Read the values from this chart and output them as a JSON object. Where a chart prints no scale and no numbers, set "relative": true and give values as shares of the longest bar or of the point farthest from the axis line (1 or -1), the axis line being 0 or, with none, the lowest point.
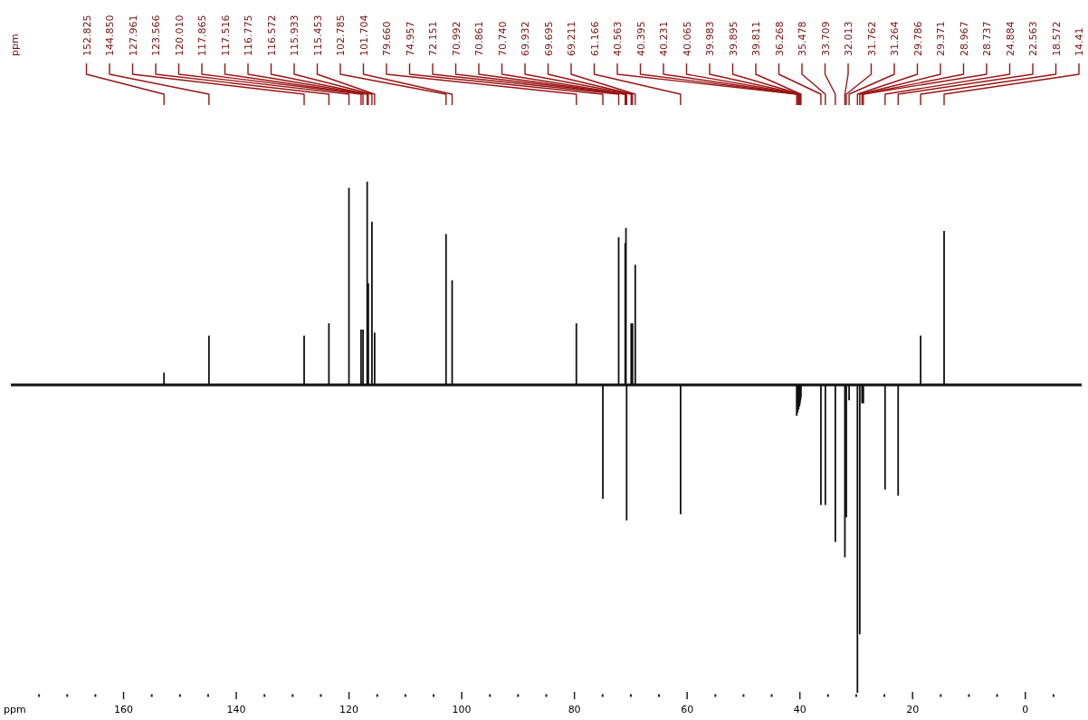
{
  "chart_data": {
    "type": "bar",
    "relative": true,
    "xlabel": "ppm",
    "xlim": [
      180,
      -10
    ],
    "xticks": [
      {
        "value": 175,
        "label": null
      },
      {
        "value": 170,
        "label": null
      },
      {
        "value": 165,
        "label": null
      },
      160,
      {
        "value": 155,
        "label": null
      },
      {
        "value": 150,
        "label": null
      },
      {
        "value": 145,
        "label": null
      },
      140,
      {
        "value": 135,
        "label": null
      },
      {
        "value": 130,
        "label": null
      },
      {
        "value": 125,
        "label": null
      },
      120,
      {
        "value": 115,
        "label": null
      },
      {
        "value": 110,
        "label": null
      },
      {
        "value": 105,
        "label": null
      },
      100,
      {
        "value": 95,
        "label": null
      },
      {
        "value": 90,
        "label": null
      },
      {
        "value": 85,
        "label": null
      },
      80,
      {
        "value": 75,
        "label": null
      },
      {
        "value": 70,
        "label": null
      },
      {
        "value": 65,
        "label": null
      },
      60,
      {
        "value": 55,
        "label": null
      },
      {
        "value": 50,
        "label": null
      },
      {
        "value": 45,
        "label": null
      },
      40,
      {
        "value": 35,
        "label": null
      },
      {
        "value": 30,
        "label": null
      },
      {
        "value": 25,
        "label": null
      },
      20,
      {
        "value": 15,
        "label": null
      },
      {
        "value": 10,
        "label": null
      },
      {
        "value": 5,
        "label": null
      },
      0,
      {
        "value": -5,
        "label": null
      }
    ],
    "x": [
      152.825,
      144.85,
      127.961,
      123.566,
      120.01,
      117.865,
      117.516,
      116.775,
      116.572,
      115.933,
      115.453,
      102.785,
      101.704,
      79.66,
      74.957,
      72.151,
      70.992,
      70.861,
      70.74,
      69.932,
      69.695,
      69.211,
      61.166,
      40.563,
      40.395,
      40.231,
      40.065,
      39.983,
      39.895,
      39.811,
      36.268,
      35.478,
      33.709,
      32.013,
      31.762,
      31.264,
      29.786,
      29.371,
      28.967,
      28.737,
      24.884,
      22.563,
      18.572,
      14.41
    ],
    "series": [
      {
        "color": "#111111",
        "values": [
          0.04,
          0.16,
          0.16,
          0.2,
          0.64,
          0.18,
          0.18,
          0.66,
          0.33,
          0.53,
          0.17,
          0.49,
          0.34,
          0.2,
          -0.37,
          0.48,
          0.46,
          0.51,
          -0.44,
          0.2,
          0.2,
          0.39,
          -0.42,
          -0.1,
          -0.09,
          -0.08,
          -0.07,
          -0.06,
          -0.05,
          -0.04,
          -0.39,
          -0.39,
          -0.51,
          -0.56,
          -0.43,
          -0.05,
          -1,
          -0.81,
          -0.06,
          -0.06,
          -0.34,
          -0.36,
          0.16,
          0.5
        ]
      }
    ],
    "annotations": [
      "ppm",
      {
        "text": "152.825",
        "x": 152.825
      },
      {
        "text": "144.850",
        "x": 144.85
      },
      {
        "text": "127.961",
        "x": 127.961
      },
      {
        "text": "123.566",
        "x": 123.566
      },
      {
        "text": "120.010",
        "x": 120.01
      },
      {
        "text": "117.865",
        "x": 117.865
      },
      {
        "text": "117.516",
        "x": 117.516
      },
      {
        "text": "116.775",
        "x": 116.775
      },
      {
        "text": "116.572",
        "x": 116.572
      },
      {
        "text": "115.933",
        "x": 115.933
      },
      {
        "text": "115.453",
        "x": 115.453
      },
      {
        "text": "102.785",
        "x": 102.785
      },
      {
        "text": "101.704",
        "x": 101.704
      },
      {
        "text": "79.660",
        "x": 79.66
      },
      {
        "text": "74.957",
        "x": 74.957
      },
      {
        "text": "72.151",
        "x": 72.151
      },
      {
        "text": "70.992",
        "x": 70.992
      },
      {
        "text": "70.861",
        "x": 70.861
      },
      {
        "text": "70.740",
        "x": 70.74
      },
      {
        "text": "69.932",
        "x": 69.932
      },
      {
        "text": "69.695",
        "x": 69.695
      },
      {
        "text": "69.211",
        "x": 69.211
      },
      {
        "text": "61.166",
        "x": 61.166
      },
      {
        "text": "40.563",
        "x": 40.563
      },
      {
        "text": "40.395",
        "x": 40.395
      },
      {
        "text": "40.231",
        "x": 40.231
      },
      {
        "text": "40.065",
        "x": 40.065
      },
      {
        "text": "39.983",
        "x": 39.983
      },
      {
        "text": "39.895",
        "x": 39.895
      },
      {
        "text": "39.811",
        "x": 39.811
      },
      {
        "text": "36.268",
        "x": 36.268
      },
      {
        "text": "35.478",
        "x": 35.478
      },
      {
        "text": "33.709",
        "x": 33.709
      },
      {
        "text": "32.013",
        "x": 32.013
      },
      {
        "text": "31.762",
        "x": 31.762
      },
      {
        "text": "31.264",
        "x": 31.264
      },
      {
        "text": "29.786",
        "x": 29.786
      },
      {
        "text": "29.371",
        "x": 29.371
      },
      {
        "text": "28.967",
        "x": 28.967
      },
      {
        "text": "28.737",
        "x": 28.737
      },
      {
        "text": "24.884",
        "x": 24.884
      },
      {
        "text": "22.563",
        "x": 22.563
      },
      {
        "text": "18.572",
        "x": 18.572
      },
      {
        "text": "14.41",
        "x": 14.41
      }
    ]
  }
}
